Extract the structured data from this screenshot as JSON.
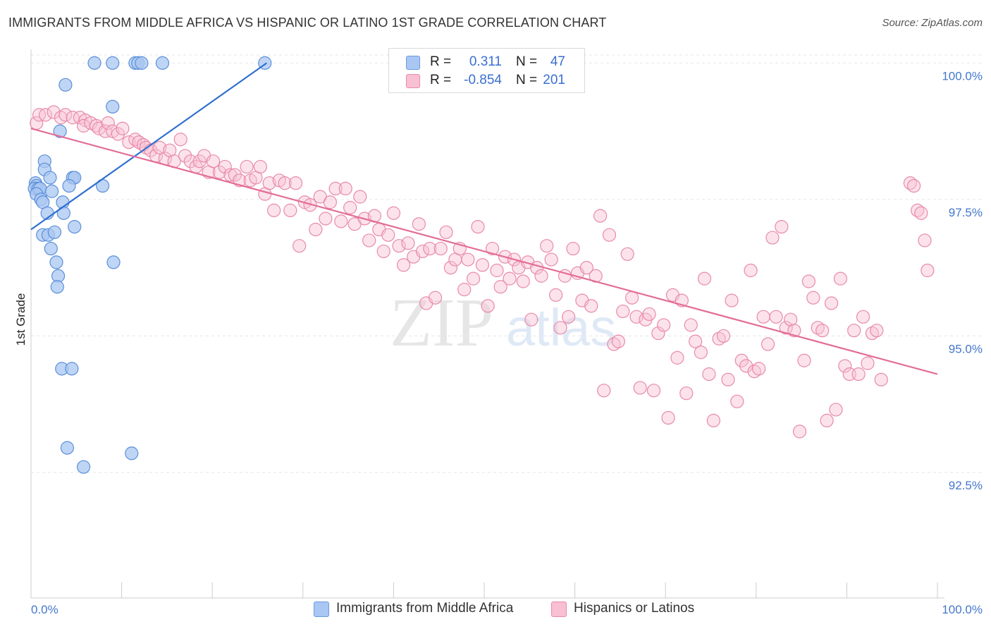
{
  "title": "IMMIGRANTS FROM MIDDLE AFRICA VS HISPANIC OR LATINO 1ST GRADE CORRELATION CHART",
  "source": "Source: ZipAtlas.com",
  "watermark": {
    "zip": "ZIP",
    "atlas": "atlas"
  },
  "legend": {
    "rows": [
      {
        "r_label": "R =",
        "r_value": "0.311",
        "n_label": "N =",
        "n_value": "47",
        "color": "#a9c7f2",
        "edge": "#6a9be0"
      },
      {
        "r_label": "R =",
        "r_value": "-0.854",
        "n_label": "N =",
        "n_value": "201",
        "color": "#f8c0d2",
        "edge": "#e88aa9"
      }
    ]
  },
  "bottom_legend": [
    "Immigrants from Middle Africa",
    "Hispanics or Latinos"
  ],
  "chart_data": {
    "type": "scatter",
    "xlabel": "",
    "ylabel": "1st Grade",
    "x_tick_labels": [
      "0.0%",
      "100.0%"
    ],
    "y_tick_labels": [
      "100.0%",
      "97.5%",
      "95.0%",
      "92.5%"
    ],
    "y_ticks": [
      100.0,
      97.5,
      95.0,
      92.5
    ],
    "xlim": [
      0,
      100
    ],
    "ylim": [
      90.2,
      100.25
    ],
    "grid": true,
    "series": [
      {
        "name": "Immigrants from Middle Africa",
        "color": "#a9c7f2",
        "edge": "#5b8fd9",
        "line_color": "#2f6fd0",
        "trend": [
          [
            0.0,
            96.95
          ],
          [
            26.0,
            100.0
          ]
        ],
        "points": [
          [
            7.0,
            100.0
          ],
          [
            9.0,
            100.0
          ],
          [
            11.5,
            100.0
          ],
          [
            11.8,
            100.0
          ],
          [
            12.2,
            100.0
          ],
          [
            14.5,
            100.0
          ],
          [
            25.8,
            100.0
          ],
          [
            3.8,
            99.6
          ],
          [
            9.0,
            99.2
          ],
          [
            3.2,
            98.75
          ],
          [
            1.5,
            98.2
          ],
          [
            1.5,
            98.05
          ],
          [
            2.1,
            97.9
          ],
          [
            4.6,
            97.9
          ],
          [
            4.8,
            97.9
          ],
          [
            0.5,
            97.8
          ],
          [
            0.6,
            97.75
          ],
          [
            0.4,
            97.7
          ],
          [
            0.8,
            97.7
          ],
          [
            1.0,
            97.7
          ],
          [
            0.6,
            97.6
          ],
          [
            2.3,
            97.65
          ],
          [
            4.2,
            97.75
          ],
          [
            7.9,
            97.75
          ],
          [
            1.1,
            97.5
          ],
          [
            1.3,
            97.45
          ],
          [
            3.5,
            97.45
          ],
          [
            1.8,
            97.25
          ],
          [
            3.6,
            97.25
          ],
          [
            4.8,
            97.0
          ],
          [
            1.3,
            96.85
          ],
          [
            1.9,
            96.85
          ],
          [
            2.6,
            96.9
          ],
          [
            2.2,
            96.6
          ],
          [
            2.8,
            96.35
          ],
          [
            9.1,
            96.35
          ],
          [
            3.0,
            96.1
          ],
          [
            2.9,
            95.9
          ],
          [
            3.4,
            94.4
          ],
          [
            4.5,
            94.4
          ],
          [
            4.0,
            92.95
          ],
          [
            11.1,
            92.85
          ],
          [
            5.8,
            92.6
          ]
        ]
      },
      {
        "name": "Hispanics or Latinos",
        "color": "#f8c0d2",
        "edge": "#e88aa9",
        "line_color": "#e36d98",
        "trend": [
          [
            0.0,
            98.8
          ],
          [
            100.0,
            94.3
          ]
        ],
        "points": [
          [
            0.6,
            98.9
          ],
          [
            0.9,
            99.05
          ],
          [
            1.6,
            99.05
          ],
          [
            2.5,
            99.1
          ],
          [
            3.3,
            99.0
          ],
          [
            3.8,
            99.05
          ],
          [
            4.6,
            99.0
          ],
          [
            5.4,
            99.0
          ],
          [
            6.0,
            98.95
          ],
          [
            5.8,
            98.85
          ],
          [
            6.6,
            98.9
          ],
          [
            7.2,
            98.85
          ],
          [
            7.5,
            98.8
          ],
          [
            8.2,
            98.75
          ],
          [
            8.5,
            98.9
          ],
          [
            9.0,
            98.75
          ],
          [
            9.6,
            98.7
          ],
          [
            10.1,
            98.8
          ],
          [
            10.8,
            98.55
          ],
          [
            11.5,
            98.6
          ],
          [
            11.9,
            98.55
          ],
          [
            12.4,
            98.5
          ],
          [
            12.7,
            98.45
          ],
          [
            13.2,
            98.4
          ],
          [
            13.8,
            98.3
          ],
          [
            14.2,
            98.45
          ],
          [
            14.8,
            98.25
          ],
          [
            15.3,
            98.4
          ],
          [
            15.8,
            98.2
          ],
          [
            16.5,
            98.6
          ],
          [
            17.0,
            98.3
          ],
          [
            17.6,
            98.2
          ],
          [
            18.2,
            98.1
          ],
          [
            18.6,
            98.2
          ],
          [
            19.1,
            98.3
          ],
          [
            19.6,
            98.0
          ],
          [
            20.1,
            98.2
          ],
          [
            20.8,
            98.0
          ],
          [
            21.4,
            98.1
          ],
          [
            22.0,
            97.95
          ],
          [
            22.5,
            97.95
          ],
          [
            23.0,
            97.85
          ],
          [
            23.8,
            98.1
          ],
          [
            24.2,
            97.85
          ],
          [
            24.8,
            97.9
          ],
          [
            25.3,
            98.1
          ],
          [
            25.8,
            97.6
          ],
          [
            26.3,
            97.8
          ],
          [
            26.8,
            97.3
          ],
          [
            27.4,
            97.85
          ],
          [
            28.0,
            97.8
          ],
          [
            28.6,
            97.3
          ],
          [
            29.2,
            97.8
          ],
          [
            29.6,
            96.65
          ],
          [
            30.2,
            97.45
          ],
          [
            30.8,
            97.4
          ],
          [
            31.4,
            96.95
          ],
          [
            31.9,
            97.55
          ],
          [
            32.5,
            97.15
          ],
          [
            33.0,
            97.45
          ],
          [
            33.6,
            97.7
          ],
          [
            34.2,
            97.1
          ],
          [
            34.7,
            97.7
          ],
          [
            35.2,
            97.35
          ],
          [
            35.7,
            97.05
          ],
          [
            36.3,
            97.55
          ],
          [
            36.8,
            97.15
          ],
          [
            37.3,
            96.75
          ],
          [
            37.9,
            97.2
          ],
          [
            38.4,
            96.95
          ],
          [
            38.9,
            96.55
          ],
          [
            39.4,
            96.85
          ],
          [
            40.0,
            97.25
          ],
          [
            40.6,
            96.65
          ],
          [
            41.1,
            96.3
          ],
          [
            41.6,
            96.7
          ],
          [
            42.2,
            96.45
          ],
          [
            42.8,
            97.05
          ],
          [
            43.2,
            96.55
          ],
          [
            43.6,
            95.6
          ],
          [
            44.0,
            96.6
          ],
          [
            44.6,
            95.7
          ],
          [
            45.2,
            96.6
          ],
          [
            45.8,
            96.9
          ],
          [
            46.3,
            96.25
          ],
          [
            46.8,
            96.4
          ],
          [
            47.3,
            96.6
          ],
          [
            47.8,
            95.85
          ],
          [
            48.2,
            96.4
          ],
          [
            48.8,
            96.05
          ],
          [
            49.3,
            97.0
          ],
          [
            49.8,
            96.3
          ],
          [
            50.4,
            95.55
          ],
          [
            50.9,
            96.6
          ],
          [
            51.4,
            96.2
          ],
          [
            51.8,
            95.9
          ],
          [
            52.3,
            96.45
          ],
          [
            52.8,
            96.05
          ],
          [
            53.3,
            96.4
          ],
          [
            53.8,
            96.25
          ],
          [
            54.3,
            96.0
          ],
          [
            54.8,
            96.35
          ],
          [
            55.2,
            95.3
          ],
          [
            55.8,
            96.25
          ],
          [
            56.3,
            96.1
          ],
          [
            56.9,
            96.65
          ],
          [
            57.4,
            96.4
          ],
          [
            57.9,
            95.75
          ],
          [
            58.4,
            95.15
          ],
          [
            58.9,
            96.1
          ],
          [
            59.3,
            95.35
          ],
          [
            59.8,
            96.6
          ],
          [
            60.3,
            96.15
          ],
          [
            60.8,
            95.65
          ],
          [
            61.3,
            96.25
          ],
          [
            61.8,
            95.55
          ],
          [
            62.3,
            96.1
          ],
          [
            62.8,
            97.2
          ],
          [
            63.2,
            94.0
          ],
          [
            63.8,
            96.85
          ],
          [
            64.3,
            94.85
          ],
          [
            64.8,
            94.9
          ],
          [
            65.3,
            95.45
          ],
          [
            65.8,
            96.5
          ],
          [
            66.3,
            95.7
          ],
          [
            66.8,
            95.35
          ],
          [
            67.2,
            94.05
          ],
          [
            67.8,
            95.3
          ],
          [
            68.2,
            95.4
          ],
          [
            68.7,
            94.0
          ],
          [
            69.2,
            95.05
          ],
          [
            69.8,
            95.2
          ],
          [
            70.3,
            93.5
          ],
          [
            70.8,
            95.75
          ],
          [
            71.3,
            94.6
          ],
          [
            71.8,
            95.65
          ],
          [
            72.3,
            93.95
          ],
          [
            72.8,
            95.2
          ],
          [
            73.3,
            94.9
          ],
          [
            73.9,
            94.7
          ],
          [
            74.3,
            96.05
          ],
          [
            74.8,
            94.3
          ],
          [
            75.3,
            93.45
          ],
          [
            75.9,
            94.95
          ],
          [
            76.4,
            95.0
          ],
          [
            76.9,
            94.2
          ],
          [
            77.3,
            95.65
          ],
          [
            77.9,
            93.8
          ],
          [
            78.4,
            94.55
          ],
          [
            78.9,
            94.45
          ],
          [
            79.4,
            96.2
          ],
          [
            79.8,
            94.35
          ],
          [
            80.3,
            94.4
          ],
          [
            80.8,
            95.35
          ],
          [
            81.3,
            94.85
          ],
          [
            81.8,
            96.8
          ],
          [
            82.2,
            95.35
          ],
          [
            82.8,
            97.0
          ],
          [
            83.3,
            95.15
          ],
          [
            83.8,
            95.3
          ],
          [
            84.2,
            95.1
          ],
          [
            84.8,
            93.25
          ],
          [
            85.3,
            94.55
          ],
          [
            85.8,
            96.0
          ],
          [
            86.3,
            95.7
          ],
          [
            86.8,
            95.15
          ],
          [
            87.3,
            95.1
          ],
          [
            87.8,
            93.45
          ],
          [
            88.3,
            95.6
          ],
          [
            88.8,
            93.65
          ],
          [
            89.3,
            96.05
          ],
          [
            89.8,
            94.45
          ],
          [
            90.3,
            94.3
          ],
          [
            90.8,
            95.1
          ],
          [
            91.3,
            94.3
          ],
          [
            91.8,
            95.35
          ],
          [
            92.3,
            94.5
          ],
          [
            92.8,
            95.05
          ],
          [
            93.3,
            95.1
          ],
          [
            93.8,
            94.2
          ],
          [
            97.0,
            97.8
          ],
          [
            97.4,
            97.75
          ],
          [
            97.8,
            97.3
          ],
          [
            98.2,
            97.25
          ],
          [
            98.6,
            96.75
          ],
          [
            98.9,
            96.2
          ]
        ]
      }
    ]
  }
}
